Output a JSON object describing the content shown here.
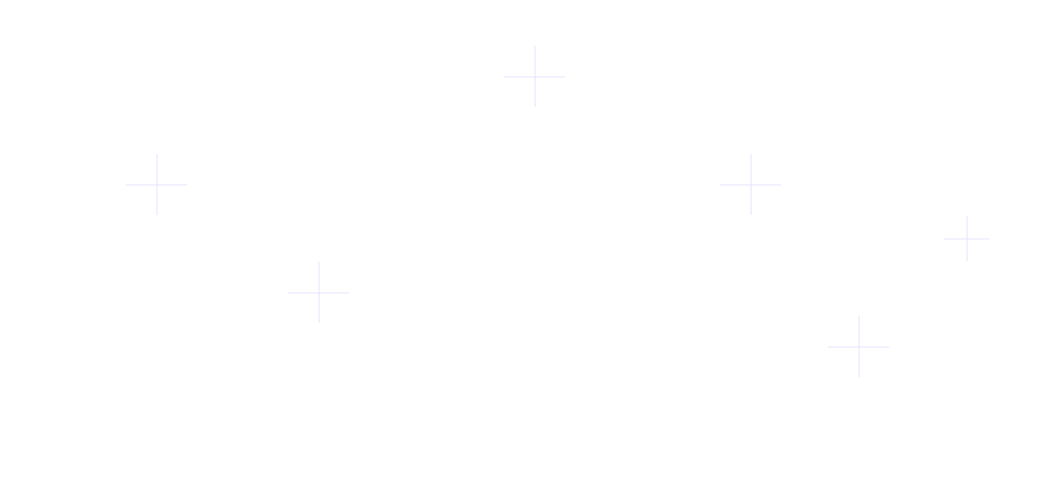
{
  "background_color": "#ffffff",
  "decoration": {
    "icon": "plus-cross-icon",
    "line_color": "#e0e0fc"
  }
}
